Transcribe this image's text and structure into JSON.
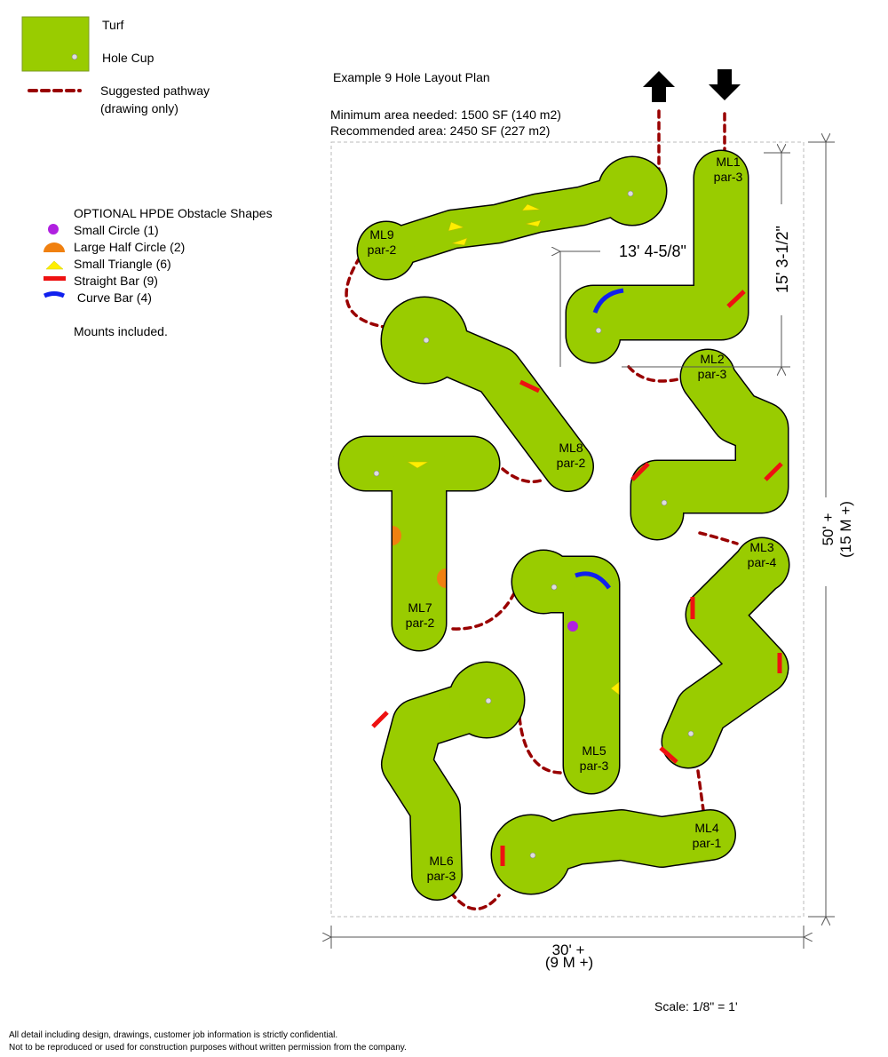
{
  "legend": {
    "turf": "Turf",
    "hole_cup": "Hole Cup",
    "pathway": "Suggested pathway",
    "pathway_note": "(drawing only)",
    "obstacles_title": "OPTIONAL HPDE Obstacle Shapes",
    "obstacles": [
      {
        "label": "Small Circle (1)",
        "icon": "small-circle",
        "color": "#b020e0"
      },
      {
        "label": "Large Half Circle (2)",
        "icon": "half-circle",
        "color": "#f08010"
      },
      {
        "label": "Small Triangle (6)",
        "icon": "triangle",
        "color": "#ffee00"
      },
      {
        "label": "Straight Bar (9)",
        "icon": "straight-bar",
        "color": "#ee1111"
      },
      {
        "label": " Curve Bar (4)",
        "icon": "curve-bar",
        "color": "#1020ee"
      }
    ],
    "mounts": "Mounts included."
  },
  "plan": {
    "title": "Example 9 Hole Layout Plan",
    "min_area": "Minimum area needed: 1500 SF (140 m2)",
    "rec_area": "Recommended area: 2450 SF (227 m2)",
    "dim_width_ml1": "13' 4-5/8\"",
    "dim_height_ml1": "15' 3-1/2\"",
    "dim_total_height": "50' +",
    "dim_total_height_m": "(15 M +)",
    "dim_total_width": "30' +",
    "dim_total_width_m": "(9 M +)",
    "scale": "Scale: 1/8\" = 1'"
  },
  "holes": [
    {
      "name": "ML1",
      "par": "par-3"
    },
    {
      "name": "ML2",
      "par": "par-3"
    },
    {
      "name": "ML3",
      "par": "par-4"
    },
    {
      "name": "ML4",
      "par": "par-1"
    },
    {
      "name": "ML5",
      "par": "par-3"
    },
    {
      "name": "ML6",
      "par": "par-3"
    },
    {
      "name": "ML7",
      "par": "par-2"
    },
    {
      "name": "ML8",
      "par": "par-2"
    },
    {
      "name": "ML9",
      "par": "par-2"
    }
  ],
  "colors": {
    "turf": "#99cc00",
    "pathway": "#990000",
    "cup": "#dddddd"
  },
  "footer": {
    "line1": "All detail including design, drawings, customer job information is strictly confidential.",
    "line2": "Not to be reproduced or used for construction purposes without written permission from the company."
  }
}
